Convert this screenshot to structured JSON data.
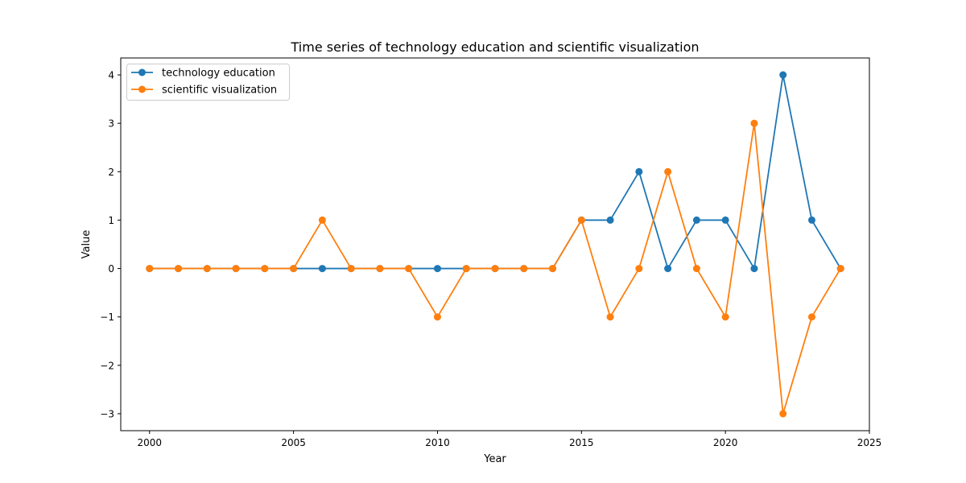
{
  "chart_data": {
    "type": "line",
    "title": "Time series of technology education and scientific visualization",
    "xlabel": "Year",
    "ylabel": "Value",
    "xlim": [
      1999,
      2025
    ],
    "ylim": [
      -3.35,
      4.35
    ],
    "xticks": [
      2000,
      2005,
      2010,
      2015,
      2020,
      2025
    ],
    "xtick_labels": [
      "2000",
      "2005",
      "2010",
      "2015",
      "2020",
      "2025"
    ],
    "yticks": [
      -3,
      -2,
      -1,
      0,
      1,
      2,
      3,
      4
    ],
    "ytick_labels": [
      "−3",
      "−2",
      "−1",
      "0",
      "1",
      "2",
      "3",
      "4"
    ],
    "grid": false,
    "legend_position": "top-left",
    "x": [
      2000,
      2001,
      2002,
      2003,
      2004,
      2005,
      2006,
      2007,
      2008,
      2009,
      2010,
      2011,
      2012,
      2013,
      2014,
      2015,
      2016,
      2017,
      2018,
      2019,
      2020,
      2021,
      2022,
      2023,
      2024
    ],
    "series": [
      {
        "name": "technology education",
        "color": "#1f77b4",
        "values": [
          0,
          0,
          0,
          0,
          0,
          0,
          0,
          0,
          0,
          0,
          0,
          0,
          0,
          0,
          0,
          1,
          1,
          2,
          0,
          1,
          1,
          0,
          4,
          1,
          0
        ]
      },
      {
        "name": "scientific visualization",
        "color": "#ff7f0e",
        "values": [
          0,
          0,
          0,
          0,
          0,
          0,
          1,
          0,
          0,
          0,
          -1,
          0,
          0,
          0,
          0,
          1,
          -1,
          0,
          2,
          0,
          -1,
          3,
          -3,
          -1,
          0
        ]
      }
    ]
  }
}
